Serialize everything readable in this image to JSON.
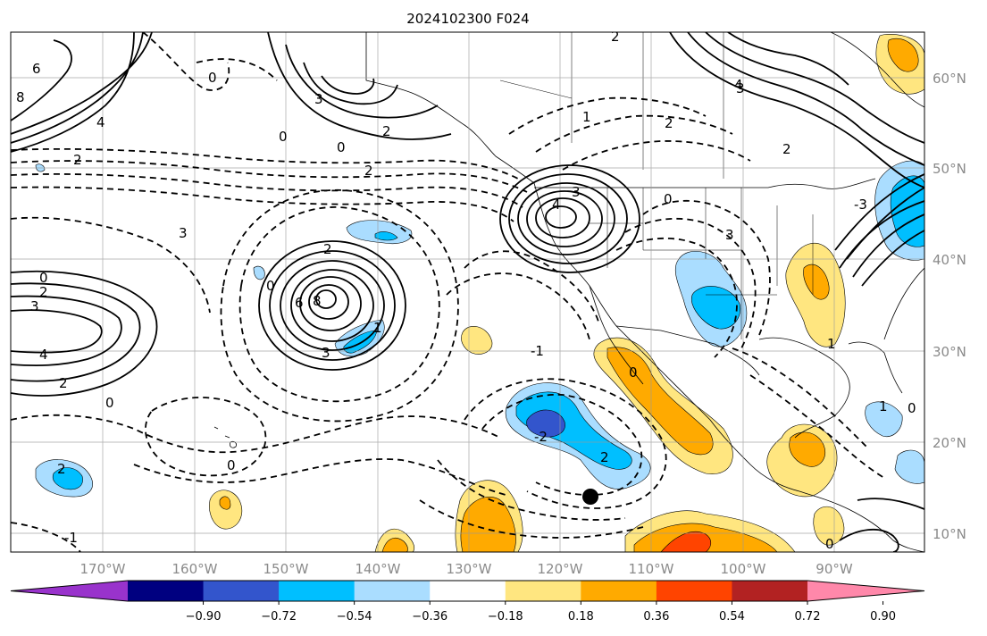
{
  "title": "2024102300 F024",
  "lat_labels": [
    "60°N",
    "50°N",
    "40°N",
    "30°N",
    "20°N",
    "10°N"
  ],
  "lon_labels": [
    "170°W",
    "160°W",
    "150°W",
    "140°W",
    "130°W",
    "120°W",
    "110°W",
    "100°W",
    "90°W"
  ],
  "colorbar": {
    "colors": [
      "#9933cc",
      "#000080",
      "#3355cc",
      "#00bfff",
      "#aaddff",
      "#ffffff",
      "#ffe680",
      "#ffaa00",
      "#ff4400",
      "#b22222",
      "#ff88aa"
    ],
    "tick_labels": [
      "−0.90",
      "−0.72",
      "−0.54",
      "−0.36",
      "−0.18",
      "0.18",
      "0.36",
      "0.54",
      "0.72",
      "0.90"
    ]
  },
  "contour_labels": [
    "6",
    "8",
    "4",
    "3",
    "0",
    "2",
    "1",
    "-1",
    "-2",
    "-3"
  ],
  "marker": "storm-center"
}
